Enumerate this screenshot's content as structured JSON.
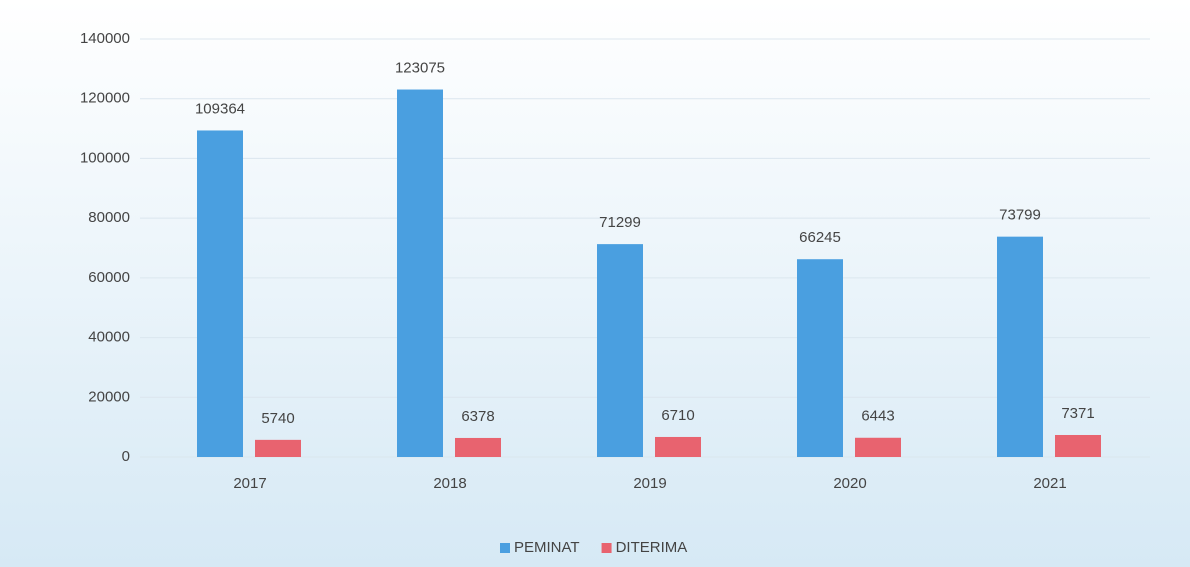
{
  "chart_data": {
    "type": "bar",
    "categories": [
      "2017",
      "2018",
      "2019",
      "2020",
      "2021"
    ],
    "series": [
      {
        "name": "PEMINAT",
        "color": "#4a9fe0",
        "values": [
          109364,
          123075,
          71299,
          66245,
          73799
        ]
      },
      {
        "name": "DITERIMA",
        "color": "#e8636f",
        "values": [
          5740,
          6378,
          6710,
          6443,
          7371
        ]
      }
    ],
    "ylim": [
      0,
      140000
    ],
    "yticks": [
      0,
      20000,
      40000,
      60000,
      80000,
      100000,
      120000,
      140000
    ],
    "grid": true,
    "legend": "bottom"
  }
}
